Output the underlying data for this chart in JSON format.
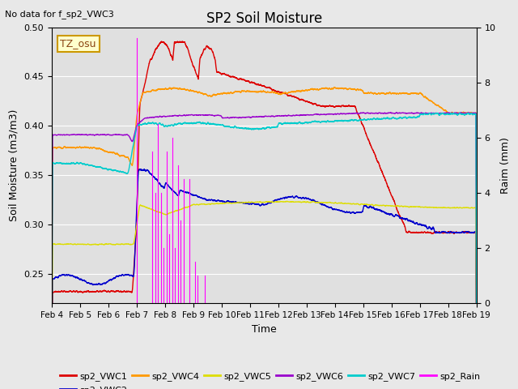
{
  "title": "SP2 Soil Moisture",
  "no_data_text": "No data for f_sp2_VWC3",
  "tz_label": "TZ_osu",
  "xlabel": "Time",
  "ylabel_left": "Soil Moisture (m3/m3)",
  "ylabel_right": "Raim (mm)",
  "ylim_left": [
    0.22,
    0.5
  ],
  "ylim_right": [
    0.0,
    10.0
  ],
  "xlim": [
    0,
    15
  ],
  "xtick_labels": [
    "Feb 4",
    "Feb 5",
    "Feb 6",
    "Feb 7",
    "Feb 8",
    "Feb 9",
    "Feb 10",
    "Feb 11",
    "Feb 12",
    "Feb 13",
    "Feb 14",
    "Feb 15",
    "Feb 16",
    "Feb 17",
    "Feb 18",
    "Feb 19"
  ],
  "xtick_positions": [
    0,
    1,
    2,
    3,
    4,
    5,
    6,
    7,
    8,
    9,
    10,
    11,
    12,
    13,
    14,
    15
  ],
  "bg_color": "#e8e8e8",
  "plot_bg_color": "#e0e0e0",
  "grid_color": "#ffffff",
  "colors": {
    "sp2_VWC1": "#dd0000",
    "sp2_VWC2": "#0000cc",
    "sp2_VWC4": "#ff9900",
    "sp2_VWC5": "#dddd00",
    "sp2_VWC6": "#9900cc",
    "sp2_VWC7": "#00cccc",
    "sp2_Rain": "#ff00ff"
  }
}
